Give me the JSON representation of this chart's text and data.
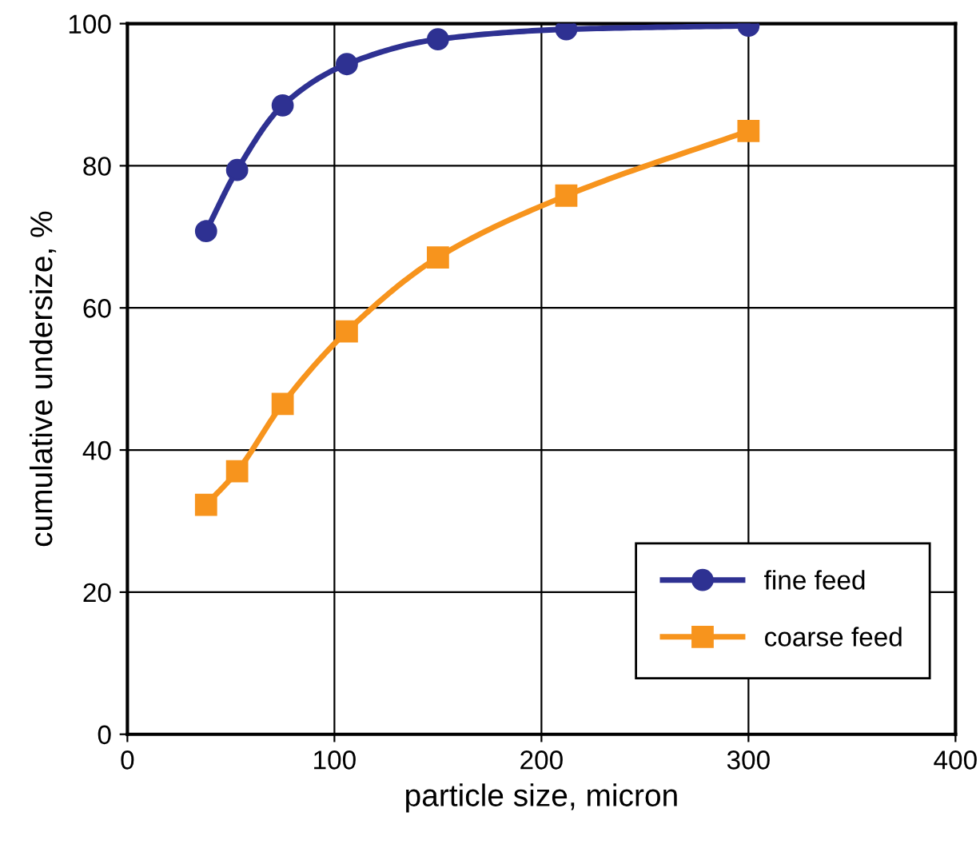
{
  "chart_data": {
    "type": "line",
    "xlabel": "particle size, micron",
    "ylabel": "cumulative undersize, %",
    "xlim": [
      0,
      400
    ],
    "xticks": [
      0,
      100,
      200,
      300,
      400
    ],
    "ylim": [
      0,
      100
    ],
    "yticks": [
      0,
      20,
      40,
      60,
      80,
      100
    ],
    "grid": true,
    "legend": "bottom right",
    "line_style": "solid",
    "series": [
      {
        "name": "fine feed",
        "color": "#2e3192",
        "marker": "circle",
        "x": [
          38,
          53,
          75,
          106,
          150,
          212,
          300
        ],
        "values": [
          70.8,
          79.4,
          88.5,
          94.3,
          97.8,
          99.2,
          99.7
        ]
      },
      {
        "name": "coarse feed",
        "color": "#f7941d",
        "marker": "square",
        "x": [
          38,
          53,
          75,
          106,
          150,
          212,
          300
        ],
        "values": [
          32.3,
          37,
          46.5,
          56.7,
          67.1,
          75.8,
          84.9
        ]
      }
    ]
  }
}
